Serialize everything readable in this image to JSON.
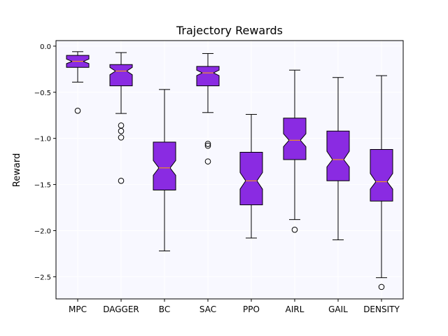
{
  "chart_data": {
    "type": "box",
    "title": "Trajectory Rewards",
    "xlabel": "",
    "ylabel": "Reward",
    "ylim": [
      -2.74,
      0.06
    ],
    "yticks": [
      0.0,
      -0.5,
      -1.0,
      -1.5,
      -2.0,
      -2.5
    ],
    "ytick_labels": [
      "0.0",
      "−0.5",
      "−1.0",
      "−1.5",
      "−2.0",
      "−2.5"
    ],
    "grid": true,
    "notched": true,
    "colors": {
      "box_fill": "#8a2be2",
      "box_edge": "#000000",
      "median": "#ffa500",
      "plot_background": "#f8f8ff",
      "grid": "#ffffff"
    },
    "categories": [
      "MPC",
      "DAGGER",
      "BC",
      "SAC",
      "PPO",
      "AIRL",
      "GAIL",
      "DENSITY"
    ],
    "boxes": [
      {
        "label": "MPC",
        "whisker_low": -0.39,
        "q1": -0.23,
        "median": -0.165,
        "q3": -0.1,
        "whisker_high": -0.06,
        "notch_low": -0.19,
        "notch_high": -0.14,
        "outliers": [
          -0.7
        ]
      },
      {
        "label": "DAGGER",
        "whisker_low": -0.73,
        "q1": -0.43,
        "median": -0.27,
        "q3": -0.2,
        "whisker_high": -0.07,
        "notch_low": -0.31,
        "notch_high": -0.23,
        "outliers": [
          -0.86,
          -0.92,
          -0.99,
          -1.46
        ]
      },
      {
        "label": "BC",
        "whisker_low": -2.22,
        "q1": -1.56,
        "median": -1.32,
        "q3": -1.04,
        "whisker_high": -0.47,
        "notch_low": -1.4,
        "notch_high": -1.24,
        "outliers": []
      },
      {
        "label": "SAC",
        "whisker_low": -0.72,
        "q1": -0.43,
        "median": -0.29,
        "q3": -0.22,
        "whisker_high": -0.08,
        "notch_low": -0.32,
        "notch_high": -0.26,
        "outliers": [
          -1.06,
          -1.08,
          -1.25
        ]
      },
      {
        "label": "PPO",
        "whisker_low": -2.08,
        "q1": -1.72,
        "median": -1.46,
        "q3": -1.15,
        "whisker_high": -0.74,
        "notch_low": -1.55,
        "notch_high": -1.37,
        "outliers": []
      },
      {
        "label": "AIRL",
        "whisker_low": -1.88,
        "q1": -1.23,
        "median": -1.02,
        "q3": -0.78,
        "whisker_high": -0.26,
        "notch_low": -1.09,
        "notch_high": -0.95,
        "outliers": [
          -1.99
        ]
      },
      {
        "label": "GAIL",
        "whisker_low": -2.1,
        "q1": -1.46,
        "median": -1.23,
        "q3": -0.92,
        "whisker_high": -0.34,
        "notch_low": -1.31,
        "notch_high": -1.14,
        "outliers": []
      },
      {
        "label": "DENSITY",
        "whisker_low": -2.51,
        "q1": -1.68,
        "median": -1.47,
        "q3": -1.12,
        "whisker_high": -0.32,
        "notch_low": -1.55,
        "notch_high": -1.38,
        "outliers": [
          -2.61
        ]
      }
    ]
  }
}
